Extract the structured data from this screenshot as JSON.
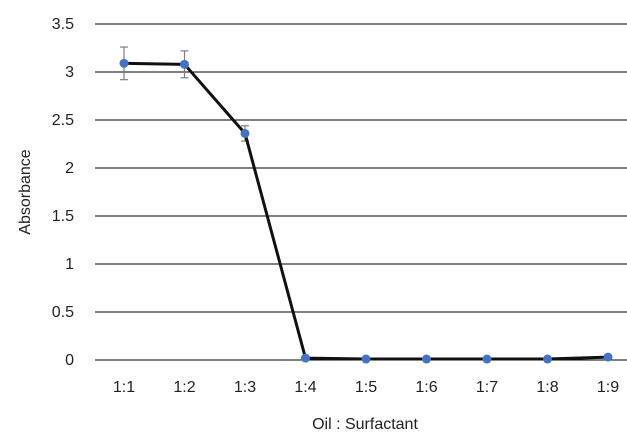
{
  "chart_data": {
    "type": "line",
    "title": "",
    "xlabel": "Oil : Surfactant",
    "ylabel": "Absorbance",
    "categories": [
      "1:1",
      "1:2",
      "1:3",
      "1:4",
      "1:5",
      "1:6",
      "1:7",
      "1:8",
      "1:9"
    ],
    "ylim": [
      0,
      3.5
    ],
    "yticks": [
      "0",
      "0.5",
      "1",
      "1.5",
      "2",
      "2.5",
      "3",
      "3.5"
    ],
    "grid": "horizontal",
    "legend": "none",
    "series": [
      {
        "values": [
          3.09,
          3.08,
          2.36,
          0.02,
          0.01,
          0.01,
          0.01,
          0.01,
          0.03
        ],
        "error": [
          0.17,
          0.14,
          0.08,
          0,
          0,
          0,
          0,
          0,
          0
        ],
        "line_color": "#111111",
        "marker_color": "#4472C4"
      }
    ],
    "error_bar_color": "#7f7f7f",
    "grid_color": "#000000"
  }
}
